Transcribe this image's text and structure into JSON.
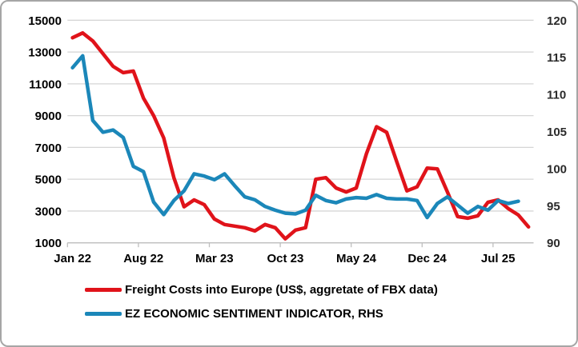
{
  "chart_data": {
    "type": "line",
    "title": "",
    "categories": [
      "Jan 22",
      "Feb 22",
      "Mar 22",
      "Apr 22",
      "May 22",
      "Jun 22",
      "Jul 22",
      "Aug 22",
      "Sep 22",
      "Oct 22",
      "Nov 22",
      "Dec 22",
      "Jan 23",
      "Feb 23",
      "Mar 23",
      "Apr 23",
      "May 23",
      "Jun 23",
      "Jul 23",
      "Aug 23",
      "Sep 23",
      "Oct 23",
      "Nov 23",
      "Dec 23",
      "Jan 24",
      "Feb 24",
      "Mar 24",
      "Apr 24",
      "May 24",
      "Jun 24",
      "Jul 24",
      "Aug 24",
      "Sep 24",
      "Oct 24",
      "Nov 24",
      "Dec 24",
      "Jan 25",
      "Feb 25",
      "Mar 25",
      "Apr 25",
      "May 25",
      "Jun 25",
      "Jul 25",
      "Aug 25",
      "Sep 25",
      "Oct 25"
    ],
    "x_tick_labels": [
      "Jan 22",
      "Aug 22",
      "Mar 23",
      "Oct 23",
      "May 24",
      "Dec 24",
      "Jul 25"
    ],
    "x_tick_interval": 7,
    "grid": true,
    "legend_position": "bottom",
    "left_axis": {
      "min": 1000,
      "max": 15000,
      "ticks": [
        15000,
        13000,
        11000,
        9000,
        7000,
        5000,
        3000,
        1000
      ]
    },
    "right_axis": {
      "min": 90,
      "max": 120,
      "ticks": [
        120,
        115,
        110,
        105,
        100,
        95,
        90
      ]
    },
    "series": [
      {
        "name": "Freight Costs into Europe (US$, aggretate of FBX data)",
        "axis": "left",
        "color": "#e0131a",
        "values": [
          13900,
          14200,
          13700,
          12900,
          12100,
          11700,
          11800,
          10100,
          9000,
          7600,
          5100,
          3270,
          3700,
          3400,
          2500,
          2150,
          2050,
          1950,
          1750,
          2150,
          1950,
          1250,
          1800,
          1950,
          5000,
          5100,
          4450,
          4200,
          4450,
          6600,
          8300,
          7950,
          6100,
          4270,
          4520,
          5700,
          5650,
          4200,
          2650,
          2550,
          2700,
          3550,
          3700,
          3150,
          2750,
          2000
        ]
      },
      {
        "name": "EZ ECONOMIC SENTIMENT INDICATOR, RHS",
        "axis": "right",
        "color": "#1b87b9",
        "values": [
          113.6,
          115.2,
          106.5,
          104.9,
          105.2,
          104.2,
          100.3,
          99.6,
          95.5,
          93.8,
          95.7,
          97.0,
          99.3,
          99.0,
          98.5,
          99.3,
          97.7,
          96.2,
          95.8,
          94.9,
          94.4,
          94.0,
          93.9,
          94.4,
          96.4,
          95.7,
          95.4,
          95.9,
          96.1,
          96.0,
          96.5,
          96.0,
          95.9,
          95.9,
          95.7,
          93.4,
          95.3,
          96.2,
          95.1,
          94.0,
          94.9,
          94.4,
          95.7,
          95.3,
          95.6
        ]
      }
    ],
    "colors": {
      "grid": "#d6d6d6",
      "axis": "#bfbfbf"
    }
  }
}
